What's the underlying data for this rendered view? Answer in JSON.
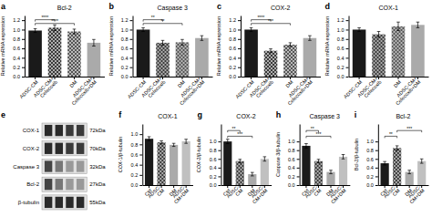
{
  "chart_data": [
    {
      "type": "bar",
      "panel": "a",
      "title": "Bcl-2",
      "ylabel": "Relative mRNA expression",
      "categories": [
        "ADSC-CM",
        "ADSC-CM+\nCelecoxib",
        "DM",
        "ADSC-CM+\nCelecoxib+DM"
      ],
      "values": [
        0.98,
        1.04,
        0.96,
        0.72
      ],
      "errors": [
        0.04,
        0.06,
        0.05,
        0.07
      ],
      "colors": [
        "#1a1a1a",
        "#3a3a3a",
        "#555555",
        "#aaaaaa"
      ],
      "hatch": [
        null,
        "x",
        "x",
        null
      ],
      "ylim": [
        0.0,
        1.3
      ],
      "yticks": [
        {
          "value": 0.0,
          "label": "0.0"
        },
        0.2,
        0.4,
        0.6,
        0.8,
        {
          "value": 1.0,
          "label": "1.0"
        },
        1.2
      ],
      "annotations": [
        {
          "x1": "ADSC-CM",
          "x2": "DM",
          "y": 1.13,
          "text": "****"
        },
        {
          "x1": "ADSC-CM",
          "x2": "ADSC-CM+\nCelecoxib",
          "y": 1.21,
          "text": "****"
        }
      ]
    },
    {
      "type": "bar",
      "panel": "b",
      "title": "Caspase 3",
      "ylabel": "Relative mRNA expression",
      "categories": [
        "ADSC-CM",
        "ADSC-CM+\nCelecoxib",
        "DM",
        "ADSC-CM+\nCelecoxib+DM"
      ],
      "values": [
        1.0,
        0.72,
        0.73,
        0.82
      ],
      "errors": [
        0.04,
        0.05,
        0.06,
        0.05
      ],
      "colors": [
        "#1a1a1a",
        "#3a3a3a",
        "#555555",
        "#aaaaaa"
      ],
      "hatch": [
        null,
        "x",
        "x",
        null
      ],
      "ylim": [
        0.0,
        1.3
      ],
      "yticks": [
        {
          "value": 0.0,
          "label": "0.0"
        },
        0.2,
        0.4,
        0.6,
        0.8,
        {
          "value": 1.0,
          "label": "1.0"
        },
        1.2
      ],
      "annotations": [
        {
          "x1": "ADSC-CM",
          "x2": "DM",
          "y": 1.13,
          "text": "**"
        },
        {
          "x1": "ADSC-CM",
          "x2": "ADSC-CM+\nCelecoxib",
          "y": 1.21,
          "text": "**"
        }
      ]
    },
    {
      "type": "bar",
      "panel": "c",
      "title": "COX-2",
      "ylabel": "Relative mRNA expression",
      "categories": [
        "ADSC-CM",
        "ADSC-CM+\nCelecoxib",
        "DM",
        "ADSC-CM+\nCelecoxib+DM"
      ],
      "values": [
        1.0,
        0.55,
        0.68,
        0.82
      ],
      "errors": [
        0.04,
        0.04,
        0.04,
        0.05
      ],
      "colors": [
        "#1a1a1a",
        "#3a3a3a",
        "#555555",
        "#aaaaaa"
      ],
      "hatch": [
        null,
        "x",
        "x",
        null
      ],
      "ylim": [
        0.0,
        1.3
      ],
      "yticks": [
        {
          "value": 0.0,
          "label": "0.0"
        },
        0.2,
        0.4,
        0.6,
        0.8,
        {
          "value": 1.0,
          "label": "1.0"
        },
        1.2
      ],
      "annotations": [
        {
          "x1": "ADSC-CM",
          "x2": "DM",
          "y": 1.13,
          "text": "***"
        },
        {
          "x1": "ADSC-CM",
          "x2": "ADSC-CM+\nCelecoxib",
          "y": 1.21,
          "text": "****"
        }
      ]
    },
    {
      "type": "bar",
      "panel": "d",
      "title": "COX-1",
      "ylabel": "Relative mRNA expression",
      "categories": [
        "ADSC-CM",
        "ADSC-CM+\nCelecoxib",
        "DM",
        "ADSC-CM+\nCelecoxib+DM"
      ],
      "values": [
        1.0,
        0.9,
        1.07,
        1.1
      ],
      "errors": [
        0.04,
        0.06,
        0.09,
        0.06
      ],
      "colors": [
        "#1a1a1a",
        "#3a3a3a",
        "#555555",
        "#aaaaaa"
      ],
      "hatch": [
        null,
        "x",
        "x",
        null
      ],
      "ylim": [
        0.0,
        1.3
      ],
      "yticks": [
        {
          "value": 0.0,
          "label": "0.0"
        },
        0.2,
        0.4,
        0.6,
        0.8,
        {
          "value": 1.0,
          "label": "1.0"
        },
        1.2
      ]
    },
    {
      "type": "blot",
      "panel": "e",
      "categories": [
        "COX-1",
        "COX-2",
        "Caspase 3",
        "Bcl-2",
        "β-tubulin"
      ],
      "annotations": [
        "72kDa",
        "70kDa",
        "32kDa",
        "27kDa",
        "55kDa"
      ],
      "colors": [
        [
          "#2a2a2a",
          "#2a2a2a",
          "#3a3a3a",
          "#3a3a3a"
        ],
        [
          "#2a2a2a",
          "#2a2a2a",
          "#3a3a3a",
          "#3a3a3a"
        ],
        [
          "#444444",
          "#777777",
          "#999999",
          "#999999"
        ],
        [
          "#444444",
          "#777777",
          "#999999",
          "#999999"
        ],
        [
          "#2a2a2a",
          "#2a2a2a",
          "#2a2a2a",
          "#2a2a2a"
        ]
      ]
    },
    {
      "type": "bar",
      "panel": "f",
      "title": "COX-1",
      "ylabel": "COX-1/β-tubulin",
      "categories": [
        "Ctrl",
        "ADSC-\nCM",
        "DM",
        "ADSC-\nCM+DM"
      ],
      "values": [
        0.91,
        0.84,
        0.79,
        0.86
      ],
      "errors": [
        0.04,
        0.03,
        0.03,
        0.04
      ],
      "colors": [
        "#1a1a1a",
        "#3a3a3a",
        "#aaaaaa",
        "#c0c0c0"
      ],
      "hatch": [
        null,
        "x",
        null,
        null
      ],
      "ylim": [
        0.0,
        1.2
      ],
      "yticks": [
        {
          "value": 0.0,
          "label": "0.0"
        },
        0.2,
        0.4,
        0.6,
        0.8,
        {
          "value": 1.0,
          "label": "1.0"
        }
      ]
    },
    {
      "type": "bar",
      "panel": "g",
      "title": "COX-2",
      "ylabel": "COX-2/β-tubulin",
      "categories": [
        "Ctrl",
        "ADSC-\nCM",
        "DM",
        "ADSC-\nCM+DM"
      ],
      "values": [
        1.0,
        0.55,
        0.25,
        0.6
      ],
      "errors": [
        0.05,
        0.04,
        0.04,
        0.05
      ],
      "colors": [
        "#1a1a1a",
        "#3a3a3a",
        "#aaaaaa",
        "#c0c0c0"
      ],
      "hatch": [
        null,
        "x",
        null,
        null
      ],
      "ylim": [
        0.0,
        1.4
      ],
      "yticks": [
        {
          "value": 0.0,
          "label": "0.0"
        },
        0.2,
        0.4,
        0.6,
        0.8,
        {
          "value": 1.0,
          "label": "1.0"
        }
      ],
      "annotations": [
        {
          "x1": "Ctrl",
          "x2": "DM",
          "y": 1.12,
          "text": "***"
        },
        {
          "x1": "Ctrl",
          "x2": "ADSC-\nCM",
          "y": 1.25,
          "text": "**"
        }
      ]
    },
    {
      "type": "bar",
      "panel": "h",
      "title": "Caspase 3",
      "ylabel": "Caspase 3/β-tubulin",
      "categories": [
        "Ctrl",
        "ADSC-\nCM",
        "DM",
        "ADSC-\nCM+DM"
      ],
      "values": [
        0.9,
        0.55,
        0.3,
        0.65
      ],
      "errors": [
        0.05,
        0.04,
        0.04,
        0.05
      ],
      "colors": [
        "#1a1a1a",
        "#3a3a3a",
        "#aaaaaa",
        "#c0c0c0"
      ],
      "hatch": [
        null,
        "x",
        null,
        null
      ],
      "ylim": [
        0.0,
        1.4
      ],
      "yticks": [
        {
          "value": 0.0,
          "label": "0.0"
        },
        0.2,
        0.4,
        0.6,
        0.8,
        {
          "value": 1.0,
          "label": "1.0"
        }
      ],
      "annotations": [
        {
          "x1": "Ctrl",
          "x2": "DM",
          "y": 1.12,
          "text": "***"
        },
        {
          "x1": "Ctrl",
          "x2": "ADSC-\nCM",
          "y": 1.25,
          "text": "**"
        }
      ]
    },
    {
      "type": "bar",
      "panel": "i",
      "title": "Bcl-2",
      "ylabel": "Bcl-2/β-tubulin",
      "categories": [
        "Ctrl",
        "ADSC-\nCM",
        "DM",
        "ADSC-\nCM+DM"
      ],
      "values": [
        0.5,
        0.85,
        0.3,
        0.55
      ],
      "errors": [
        0.04,
        0.05,
        0.04,
        0.05
      ],
      "colors": [
        "#1a1a1a",
        "#3a3a3a",
        "#aaaaaa",
        "#c0c0c0"
      ],
      "hatch": [
        null,
        "x",
        null,
        null
      ],
      "ylim": [
        0.0,
        1.4
      ],
      "yticks": [
        {
          "value": 0.0,
          "label": "0.0"
        },
        0.2,
        0.4,
        0.6,
        0.8,
        {
          "value": 1.0,
          "label": "1.0"
        }
      ],
      "annotations": [
        {
          "x1": "Ctrl",
          "x2": "ADSC-\nCM",
          "y": 1.12,
          "text": "**"
        },
        {
          "x1": "ADSC-\nCM",
          "x2": "ADSC-\nCM+DM",
          "y": 1.25,
          "text": "***"
        }
      ]
    }
  ]
}
